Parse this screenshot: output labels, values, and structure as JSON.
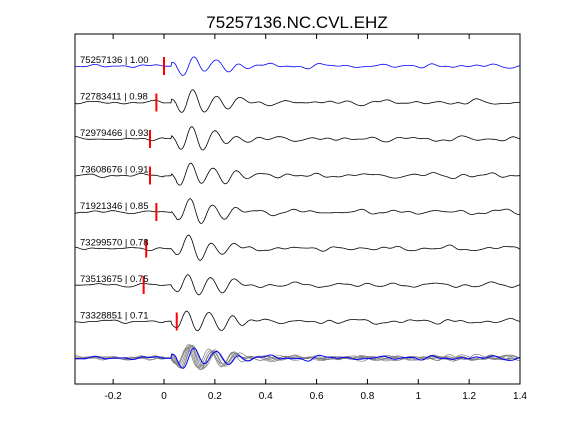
{
  "chart_data": {
    "type": "line",
    "title": "75257136.NC.CVL.EHZ",
    "xlabel": "",
    "ylabel": "",
    "xlim": [
      -0.35,
      1.4
    ],
    "xticks": [
      -0.2,
      0,
      0.2,
      0.4,
      0.6,
      0.8,
      1,
      1.2,
      1.4
    ],
    "xtick_labels": [
      "-0.2",
      "0",
      "0.2",
      "0.4",
      "0.6",
      "0.8",
      "1",
      "1.2",
      "1.4"
    ],
    "grid": false,
    "colors": {
      "reference": "#0000ff",
      "trace": "#000000",
      "stack": "#808080",
      "pick": "#ff0000"
    },
    "traces": [
      {
        "event_id": "75257136",
        "cc": "1.00",
        "label": "75257136 | 1.00",
        "pick_time": 0.0,
        "reference": true
      },
      {
        "event_id": "72783411",
        "cc": "0.98",
        "label": "72783411 | 0.98",
        "pick_time": -0.03
      },
      {
        "event_id": "72979466",
        "cc": "0.93",
        "label": "72979466 | 0.93",
        "pick_time": -0.055
      },
      {
        "event_id": "73608676",
        "cc": "0.91",
        "label": "73608676 | 0.91",
        "pick_time": -0.055
      },
      {
        "event_id": "71921346",
        "cc": "0.85",
        "label": "71921346 | 0.85",
        "pick_time": -0.03
      },
      {
        "event_id": "73299570",
        "cc": "0.78",
        "label": "73299570 | 0.78",
        "pick_time": -0.07
      },
      {
        "event_id": "73513675",
        "cc": "0.75",
        "label": "73513675 | 0.75",
        "pick_time": -0.08
      },
      {
        "event_id": "73328851",
        "cc": "0.71",
        "label": "73328851 | 0.71",
        "pick_time": 0.05
      }
    ]
  }
}
